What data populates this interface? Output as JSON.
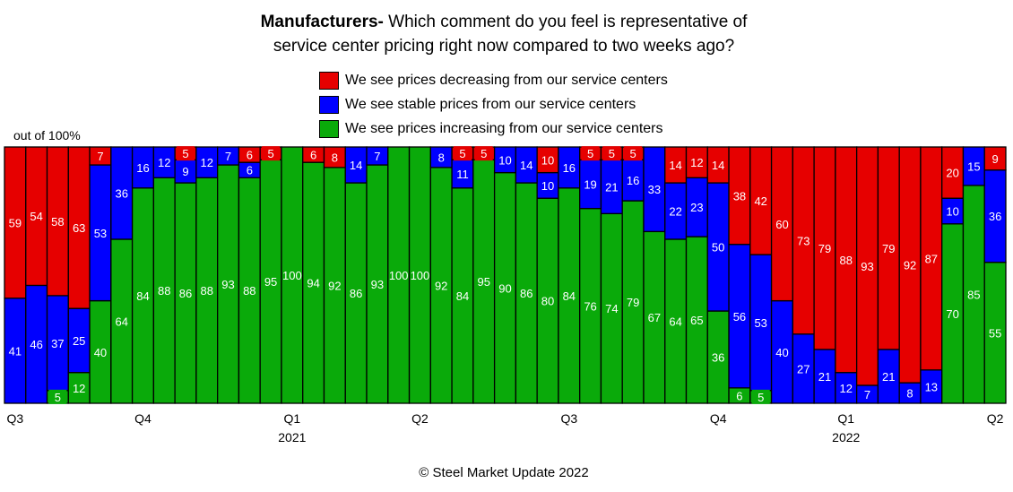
{
  "chart_data": {
    "type": "bar",
    "stacked": true,
    "percent": true,
    "title_bold": "Manufacturers-",
    "title_rest_line1": " Which comment do you feel is representative of",
    "title_line2": "service center pricing right now compared to two weeks ago?",
    "ylabel": "out of 100%",
    "ylim": [
      0,
      100
    ],
    "legend_placement": "top-center",
    "grid": false,
    "series": [
      {
        "name": "We see prices decreasing from our service centers",
        "color": "#e60000",
        "values": [
          59,
          54,
          58,
          63,
          7,
          0,
          0,
          0,
          5,
          0,
          0,
          6,
          5,
          0,
          6,
          8,
          0,
          0,
          0,
          0,
          0,
          5,
          5,
          0,
          0,
          10,
          0,
          5,
          5,
          5,
          0,
          14,
          12,
          14,
          38,
          42,
          60,
          73,
          79,
          88,
          93,
          79,
          92,
          87,
          20,
          0,
          9
        ]
      },
      {
        "name": "We see stable prices from our service centers",
        "color": "#0000ff",
        "values": [
          41,
          46,
          37,
          25,
          53,
          36,
          16,
          12,
          9,
          12,
          7,
          6,
          0,
          0,
          0,
          0,
          14,
          7,
          0,
          0,
          8,
          11,
          0,
          10,
          14,
          10,
          16,
          19,
          21,
          16,
          33,
          22,
          23,
          50,
          56,
          53,
          40,
          27,
          21,
          12,
          7,
          21,
          8,
          13,
          10,
          15,
          36
        ]
      },
      {
        "name": "We see prices increasing from our service centers",
        "color": "#0aaa0a",
        "values": [
          0,
          0,
          5,
          12,
          40,
          64,
          84,
          88,
          86,
          88,
          93,
          88,
          95,
          100,
          94,
          92,
          86,
          93,
          100,
          100,
          92,
          84,
          95,
          90,
          86,
          80,
          84,
          76,
          74,
          79,
          67,
          64,
          65,
          36,
          6,
          5,
          0,
          0,
          0,
          0,
          0,
          0,
          0,
          0,
          70,
          85,
          55
        ]
      }
    ],
    "x_ticks": [
      {
        "bar": 1,
        "label": "Q3",
        "year": ""
      },
      {
        "bar": 7,
        "label": "Q4",
        "year": ""
      },
      {
        "bar": 14,
        "label": "Q1",
        "year": "2021"
      },
      {
        "bar": 20,
        "label": "Q2",
        "year": ""
      },
      {
        "bar": 27,
        "label": "Q3",
        "year": ""
      },
      {
        "bar": 34,
        "label": "Q4",
        "year": ""
      },
      {
        "bar": 40,
        "label": "Q1",
        "year": "2022"
      },
      {
        "bar": 47,
        "label": "Q2",
        "year": ""
      }
    ],
    "footer": "© Steel Market Update 2022"
  }
}
